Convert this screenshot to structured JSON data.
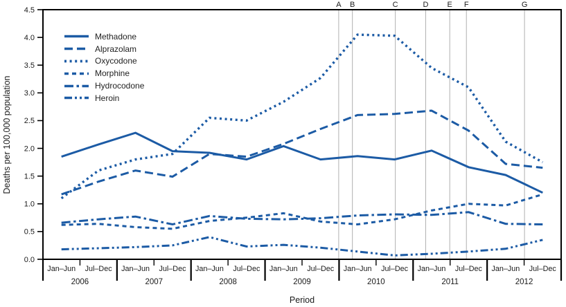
{
  "chart_data": {
    "type": "line",
    "title": "",
    "ylabel": "Deaths per 100,000 population",
    "xlabel": "Period",
    "ylim": [
      0,
      4.5
    ],
    "y_tick_labels": [
      "0.0",
      "0.5",
      "1.0",
      "1.5",
      "2.0",
      "2.5",
      "3.0",
      "3.5",
      "4.0",
      "4.5"
    ],
    "grid": "vertical-reference-lines-only",
    "legend_position": "top-left-inside",
    "line_color": "#1c5ba5",
    "reference_line_color": "#b0b0b0",
    "x_structure": {
      "years": [
        "2006",
        "2007",
        "2008",
        "2009",
        "2010",
        "2011",
        "2012"
      ],
      "periods_per_year": [
        "Jan–Jun",
        "Jul–Dec"
      ]
    },
    "x_categories": [
      "2006 Jan–Jun",
      "2006 Jul–Dec",
      "2007 Jan–Jun",
      "2007 Jul–Dec",
      "2008 Jan–Jun",
      "2008 Jul–Dec",
      "2009 Jan–Jun",
      "2009 Jul–Dec",
      "2010 Jan–Jun",
      "2010 Jul–Dec",
      "2011 Jan–Jun",
      "2011 Jul–Dec",
      "2012 Jan–Jun",
      "2012 Jul–Dec"
    ],
    "series": [
      {
        "name": "Methadone",
        "dash": "solid",
        "values": [
          1.85,
          2.07,
          2.28,
          1.95,
          1.92,
          1.8,
          2.04,
          1.8,
          1.86,
          1.8,
          1.96,
          1.66,
          1.52,
          1.2
        ]
      },
      {
        "name": "Alprazolam",
        "dash": "longdash",
        "values": [
          1.17,
          1.4,
          1.6,
          1.49,
          1.9,
          1.85,
          2.08,
          2.35,
          2.6,
          2.62,
          2.68,
          2.32,
          1.72,
          1.65
        ]
      },
      {
        "name": "Oxycodone",
        "dash": "dot",
        "values": [
          1.1,
          1.6,
          1.8,
          1.9,
          2.55,
          2.5,
          2.84,
          3.27,
          4.05,
          4.03,
          3.45,
          3.1,
          2.12,
          1.75
        ]
      },
      {
        "name": "Morphine",
        "dash": "shortdash",
        "values": [
          0.62,
          0.64,
          0.58,
          0.55,
          0.69,
          0.75,
          0.83,
          0.68,
          0.63,
          0.72,
          0.88,
          1.0,
          0.97,
          1.17
        ]
      },
      {
        "name": "Hydrocodone",
        "dash": "dashdot",
        "values": [
          0.66,
          0.72,
          0.77,
          0.63,
          0.78,
          0.73,
          0.72,
          0.74,
          0.79,
          0.81,
          0.8,
          0.85,
          0.64,
          0.63
        ]
      },
      {
        "name": "Heroin",
        "dash": "dashdotdot",
        "values": [
          0.18,
          0.2,
          0.22,
          0.25,
          0.4,
          0.23,
          0.26,
          0.21,
          0.14,
          0.07,
          0.1,
          0.14,
          0.19,
          0.35
        ]
      }
    ],
    "reference_lines": [
      {
        "label": "A",
        "x_period_index": 7.49
      },
      {
        "label": "B",
        "x_period_index": 7.86
      },
      {
        "label": "C",
        "x_period_index": 9.02
      },
      {
        "label": "D",
        "x_period_index": 9.84
      },
      {
        "label": "E",
        "x_period_index": 10.49
      },
      {
        "label": "F",
        "x_period_index": 10.94
      },
      {
        "label": "G",
        "x_period_index": 12.51
      }
    ]
  }
}
